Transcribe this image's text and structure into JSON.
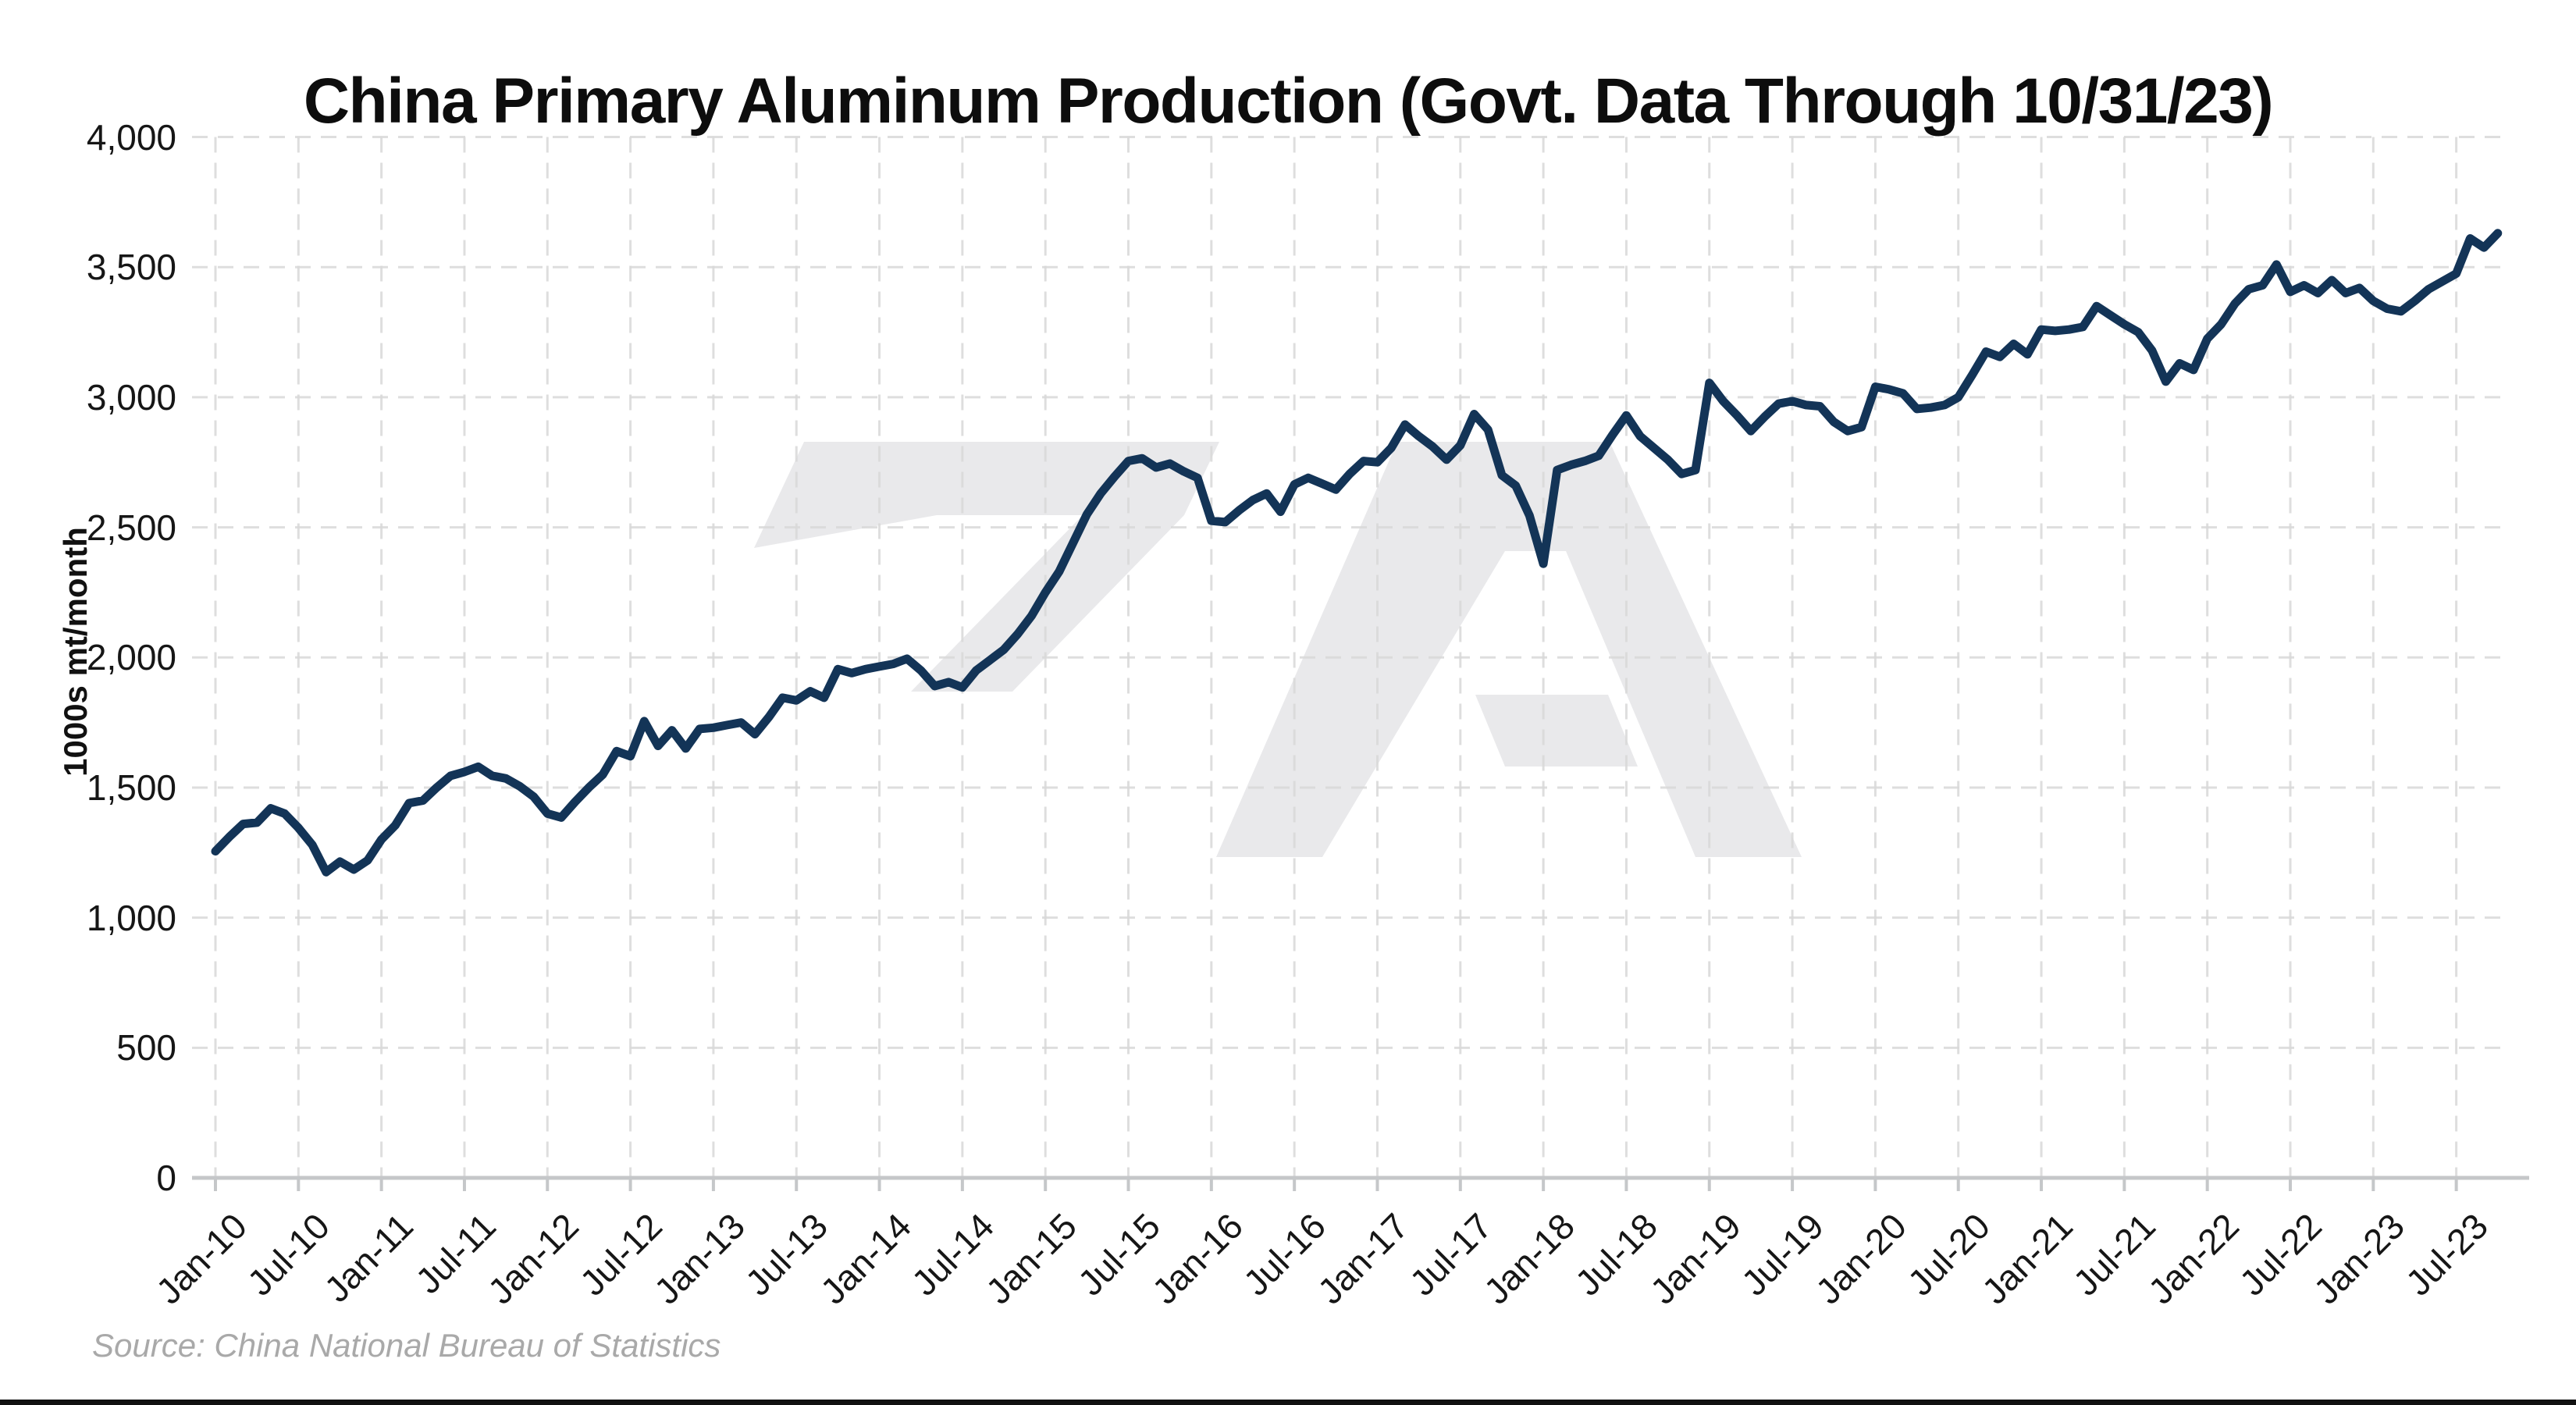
{
  "source": "Source: China National Bureau of Statistics",
  "colors": {
    "line": "#133457",
    "grid": "#d9d9d9",
    "axis": "#c5c7c9",
    "watermark": "#e9e9eb",
    "title_text": "#0d0d0d",
    "tick_text": "#161616",
    "source_text": "#a9a9a9",
    "background": "#ffffff",
    "bottom_border": "#111111"
  },
  "chart_data": {
    "type": "line",
    "title": "China Primary Aluminum Production (Govt. Data Through 10/31/23)",
    "ylabel": "1000s mt/month",
    "xlabel": "",
    "ylim": [
      0,
      4000
    ],
    "ytick_step": 500,
    "ytick_labels": [
      "0",
      "500",
      "1,000",
      "1,500",
      "2,000",
      "2,500",
      "3,000",
      "3,500",
      "4,000"
    ],
    "xtick_labels": [
      "Jan-10",
      "Jul-10",
      "Jan-11",
      "Jul-11",
      "Jan-12",
      "Jul-12",
      "Jan-13",
      "Jul-13",
      "Jan-14",
      "Jul-14",
      "Jan-15",
      "Jul-15",
      "Jan-16",
      "Jul-16",
      "Jan-17",
      "Jul-17",
      "Jan-18",
      "Jul-18",
      "Jan-19",
      "Jul-19",
      "Jan-20",
      "Jul-20",
      "Jan-21",
      "Jul-21",
      "Jan-22",
      "Jul-22",
      "Jan-23",
      "Jul-23"
    ],
    "x_frequency": "monthly",
    "x_range": [
      "Jan-10",
      "Oct-23"
    ],
    "grid": "dashed",
    "legend_position": "none",
    "series": [
      {
        "name": "China primary aluminum production (1000s mt/month)",
        "values": [
          1255,
          1310,
          1360,
          1365,
          1420,
          1400,
          1345,
          1280,
          1175,
          1215,
          1185,
          1220,
          1300,
          1355,
          1440,
          1450,
          1500,
          1545,
          1560,
          1580,
          1545,
          1535,
          1505,
          1465,
          1400,
          1385,
          1445,
          1500,
          1550,
          1640,
          1620,
          1755,
          1660,
          1720,
          1650,
          1725,
          1730,
          1740,
          1750,
          1705,
          1770,
          1845,
          1835,
          1870,
          1845,
          1955,
          1940,
          1955,
          1965,
          1975,
          1995,
          1950,
          1890,
          1905,
          1885,
          1950,
          1990,
          2030,
          2090,
          2160,
          2250,
          2330,
          2440,
          2550,
          2630,
          2695,
          2755,
          2765,
          2730,
          2745,
          2715,
          2690,
          2525,
          2520,
          2565,
          2605,
          2630,
          2560,
          2665,
          2690,
          2668,
          2645,
          2705,
          2755,
          2750,
          2805,
          2895,
          2850,
          2810,
          2760,
          2815,
          2935,
          2875,
          2700,
          2660,
          2545,
          2360,
          2720,
          2740,
          2755,
          2775,
          2855,
          2930,
          2850,
          2805,
          2760,
          2705,
          2720,
          3055,
          2985,
          2930,
          2870,
          2925,
          2975,
          2985,
          2970,
          2965,
          2905,
          2870,
          2885,
          3040,
          3030,
          3015,
          2955,
          2960,
          2970,
          3000,
          3085,
          3175,
          3155,
          3205,
          3165,
          3260,
          3255,
          3260,
          3270,
          3350,
          3315,
          3280,
          3250,
          3180,
          3060,
          3130,
          3105,
          3225,
          3280,
          3360,
          3415,
          3430,
          3510,
          3405,
          3430,
          3400,
          3450,
          3400,
          3420,
          3370,
          3340,
          3330,
          3370,
          3415,
          3445,
          3475,
          3610,
          3575,
          3630
        ]
      }
    ]
  }
}
